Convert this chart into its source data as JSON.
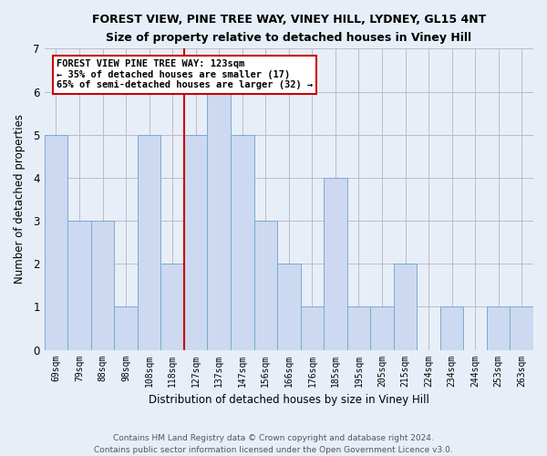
{
  "title": "FOREST VIEW, PINE TREE WAY, VINEY HILL, LYDNEY, GL15 4NT",
  "subtitle": "Size of property relative to detached houses in Viney Hill",
  "xlabel": "Distribution of detached houses by size in Viney Hill",
  "ylabel": "Number of detached properties",
  "categories": [
    "69sqm",
    "79sqm",
    "88sqm",
    "98sqm",
    "108sqm",
    "118sqm",
    "127sqm",
    "137sqm",
    "147sqm",
    "156sqm",
    "166sqm",
    "176sqm",
    "185sqm",
    "195sqm",
    "205sqm",
    "215sqm",
    "224sqm",
    "234sqm",
    "244sqm",
    "253sqm",
    "263sqm"
  ],
  "values": [
    5,
    3,
    3,
    1,
    5,
    2,
    5,
    6,
    5,
    3,
    2,
    1,
    4,
    1,
    1,
    2,
    0,
    1,
    0,
    1,
    1
  ],
  "bar_color": "#ccd9f0",
  "bar_edge_color": "#7aaad0",
  "highlight_index": 5,
  "highlight_line_color": "#cc0000",
  "ylim": [
    0,
    7
  ],
  "yticks": [
    0,
    1,
    2,
    3,
    4,
    5,
    6,
    7
  ],
  "annotation_title": "FOREST VIEW PINE TREE WAY: 123sqm",
  "annotation_line1": "← 35% of detached houses are smaller (17)",
  "annotation_line2": "65% of semi-detached houses are larger (32) →",
  "annotation_box_color": "#ffffff",
  "annotation_box_edge": "#cc0000",
  "footer_line1": "Contains HM Land Registry data © Crown copyright and database right 2024.",
  "footer_line2": "Contains public sector information licensed under the Open Government Licence v3.0.",
  "bg_color": "#e8eef8",
  "plot_bg_color": "#e8eef8",
  "grid_color": "#bbbbcc"
}
